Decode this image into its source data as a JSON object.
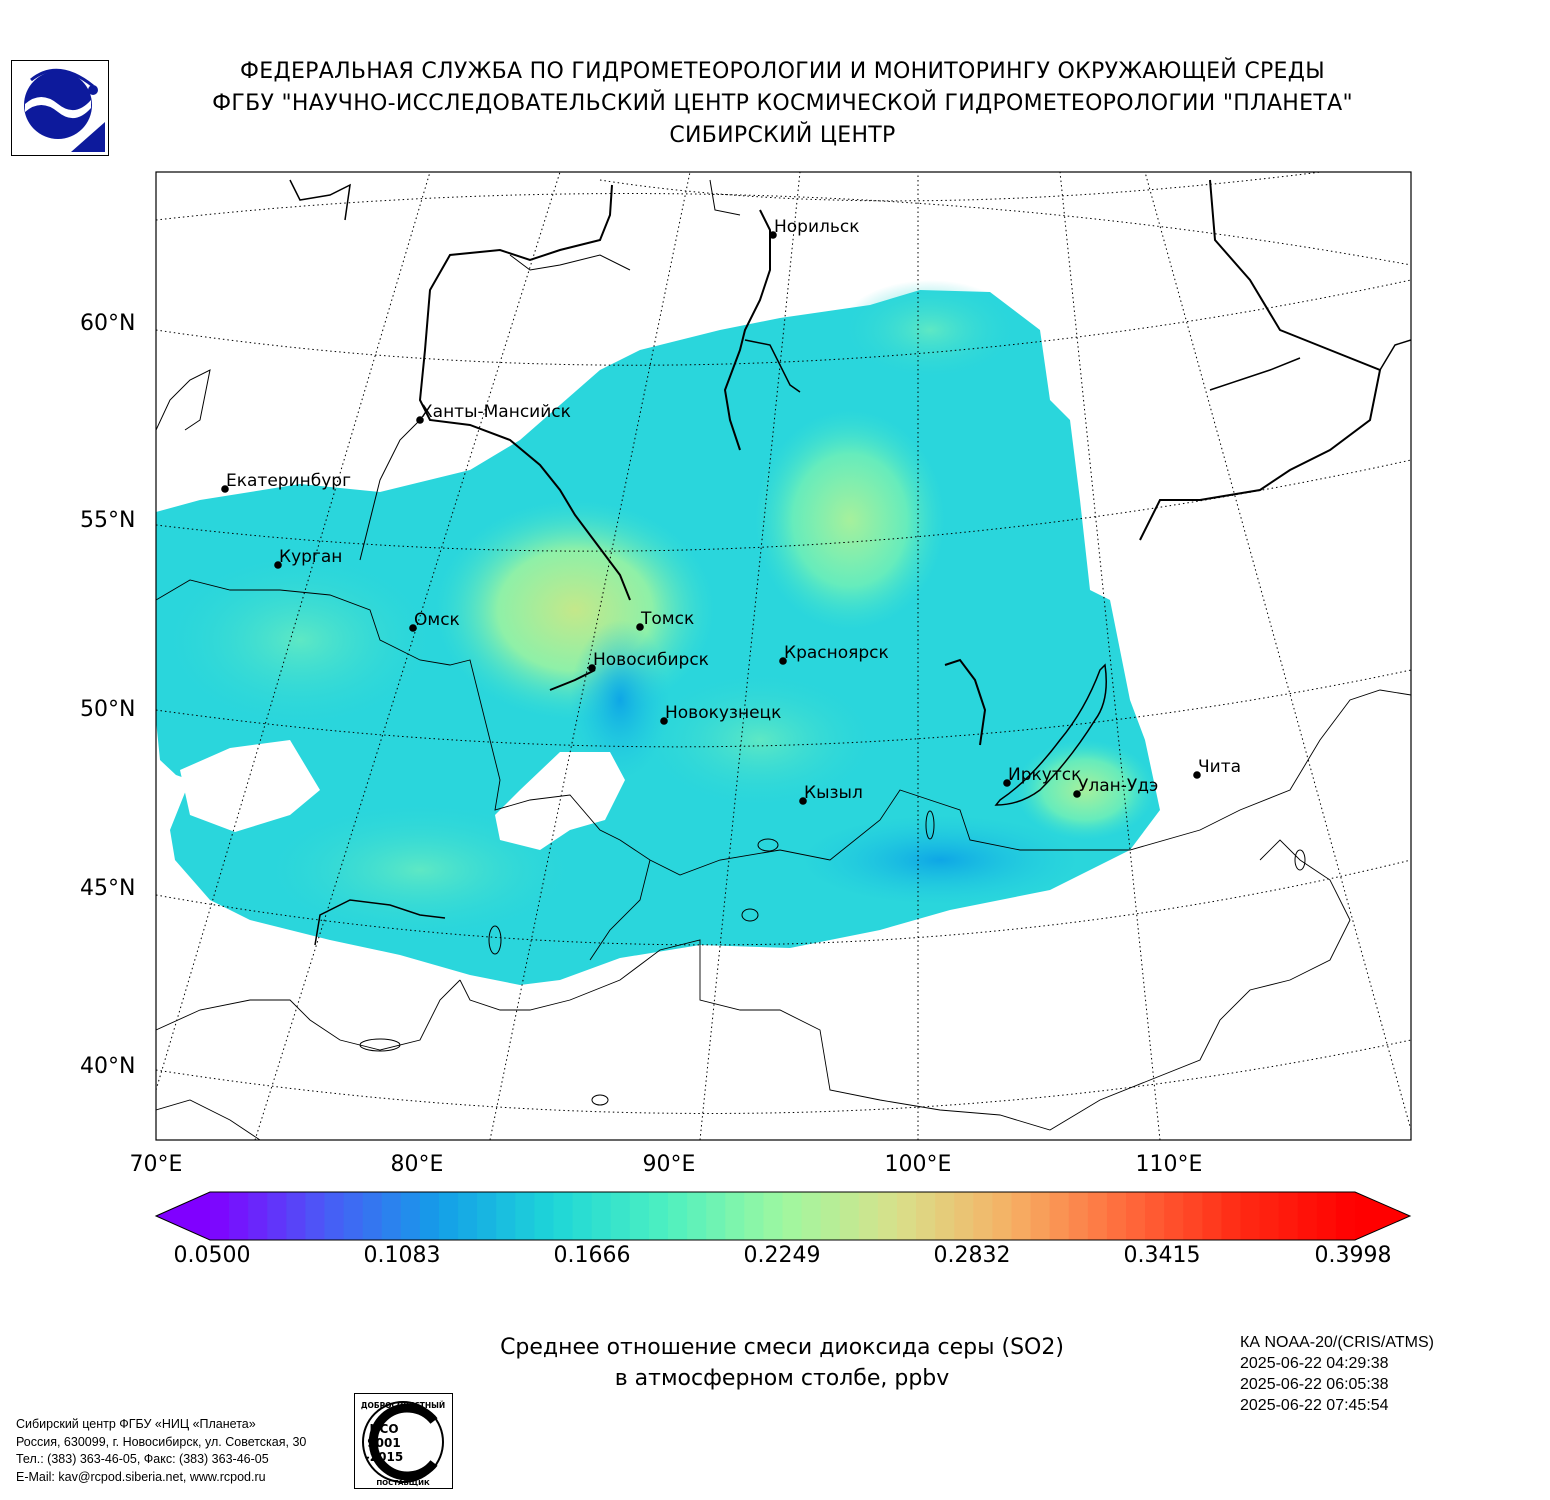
{
  "header": {
    "line1": "ФЕДЕРАЛЬНАЯ СЛУЖБА ПО ГИДРОМЕТЕОРОЛОГИИ И МОНИТОРИНГУ ОКРУЖАЮЩЕЙ СРЕДЫ",
    "line2": "ФГБУ \"НАУЧНО-ИССЛЕДОВАТЕЛЬСКИЙ ЦЕНТР КОСМИЧЕСКОЙ ГИДРОМЕТЕОРОЛОГИИ \"ПЛАНЕТА\"",
    "line3": "СИБИРСКИЙ ЦЕНТР"
  },
  "map": {
    "lat_labels": [
      "60°N",
      "55°N",
      "50°N",
      "45°N",
      "40°N"
    ],
    "lon_labels": [
      "70°E",
      "80°E",
      "90°E",
      "100°E",
      "110°E"
    ],
    "cities": [
      {
        "name": "Норильск"
      },
      {
        "name": "Ханты-Мансийск"
      },
      {
        "name": "Екатеринбург"
      },
      {
        "name": "Курган"
      },
      {
        "name": "Омск"
      },
      {
        "name": "Томск"
      },
      {
        "name": "Новосибирск"
      },
      {
        "name": "Красноярск"
      },
      {
        "name": "Новокузнецк"
      },
      {
        "name": "Иркутск"
      },
      {
        "name": "Улан-Удэ"
      },
      {
        "name": "Чита"
      },
      {
        "name": "Кызыл"
      }
    ],
    "field_colors": {
      "low": "#1fc8e0",
      "mid": "#3ee0d2",
      "high": "#b8e88c",
      "dip": "#12a8e8"
    }
  },
  "colorbar": {
    "ticks": [
      "0.0500",
      "0.1083",
      "0.1666",
      "0.2249",
      "0.2832",
      "0.3415",
      "0.3998"
    ],
    "min": 0.05,
    "max": 0.3998,
    "colors": [
      "#8000ff",
      "#4a5af6",
      "#149ee8",
      "#1ed6d8",
      "#4ef0c0",
      "#9ef8a0",
      "#d8e08a",
      "#f6b064",
      "#ff6a3c",
      "#ff2a14",
      "#ff0000"
    ]
  },
  "title": {
    "line1": "Среднее отношение смеси диоксида серы (SO2)",
    "line2": "в атмосферном столбе, ppbv"
  },
  "satellite": {
    "name": "КА NOAA-20/(CRIS/ATMS)",
    "times": [
      "2025-06-22 04:29:38",
      "2025-06-22 06:05:38",
      "2025-06-22 07:45:54"
    ]
  },
  "contact": {
    "line1": "Сибирский центр ФГБУ «НИЦ «Планета»",
    "line2": "Россия, 630099, г. Новосибирск, ул. Советская, 30",
    "line3": "Тел.: (383) 363-46-05, Факс: (383) 363-46-05",
    "line4": "E-Mail: kav@rcpod.siberia.net, www.rcpod.ru"
  },
  "iso_badge": {
    "top": "ДОБРОСОВЕСТНЫЙ",
    "code1": "ИСО",
    "code2": "9001",
    "code3": "-2015",
    "bottom": "ПОСТАВЩИК"
  }
}
